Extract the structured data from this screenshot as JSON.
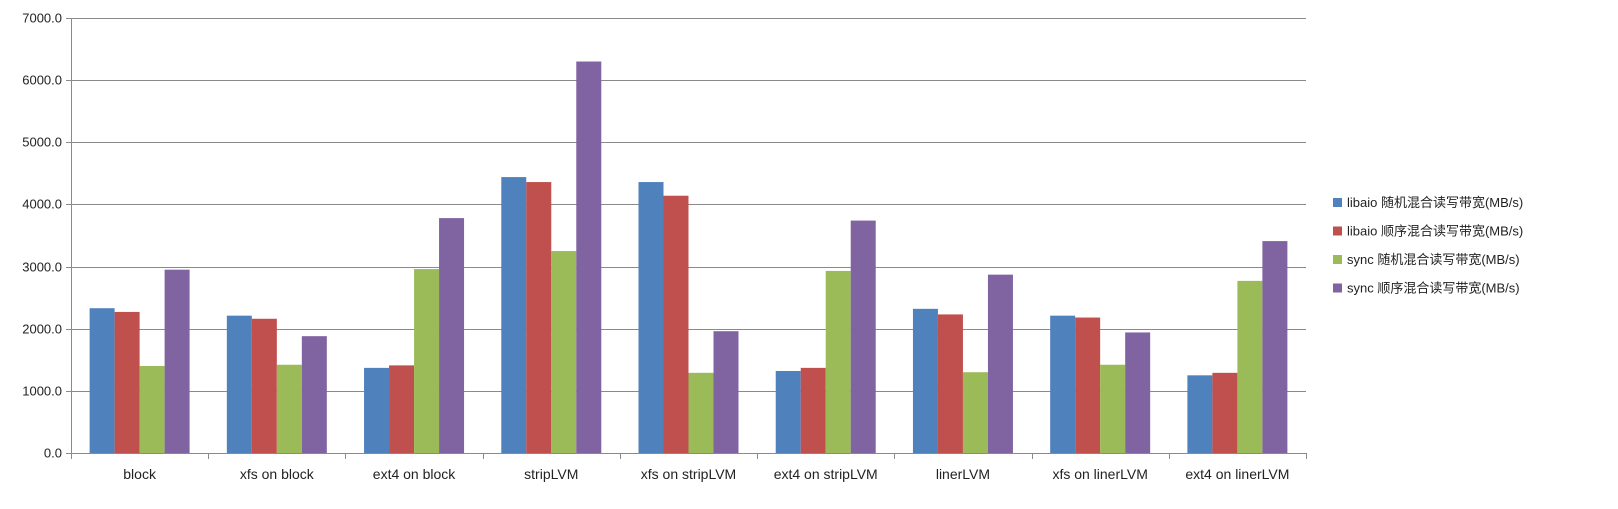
{
  "chart_data": {
    "type": "bar",
    "title": "",
    "xlabel": "",
    "ylabel": "",
    "ylim": [
      0,
      7000
    ],
    "yticks": [
      "0.0",
      "1000.0",
      "2000.0",
      "3000.0",
      "4000.0",
      "5000.0",
      "6000.0",
      "7000.0"
    ],
    "grid": true,
    "legend_position": "right",
    "categories": [
      "block",
      "xfs on block",
      "ext4 on block",
      "stripLVM",
      "xfs on stripLVM",
      "ext4 on stripLVM",
      "linerLVM",
      "xfs on linerLVM",
      "ext4 on linerLVM"
    ],
    "series": [
      {
        "name": "libaio 随机混合读写带宽(MB/s)",
        "color": "#4F81BD",
        "values": [
          2330,
          2210,
          1370,
          4440,
          4360,
          1320,
          2320,
          2210,
          1250
        ]
      },
      {
        "name": "libaio 顺序混合读写带宽(MB/s)",
        "color": "#C0504D",
        "values": [
          2270,
          2160,
          1410,
          4360,
          4140,
          1370,
          2230,
          2180,
          1290
        ]
      },
      {
        "name": "sync 随机混合读写带宽(MB/s)",
        "color": "#9BBB59",
        "values": [
          1400,
          1420,
          2960,
          3250,
          1290,
          2930,
          1300,
          1420,
          2770
        ]
      },
      {
        "name": "sync 顺序混合读写带宽(MB/s)",
        "color": "#8064A2",
        "values": [
          2950,
          1880,
          3780,
          6300,
          1960,
          3740,
          2870,
          1940,
          3410
        ]
      }
    ]
  }
}
